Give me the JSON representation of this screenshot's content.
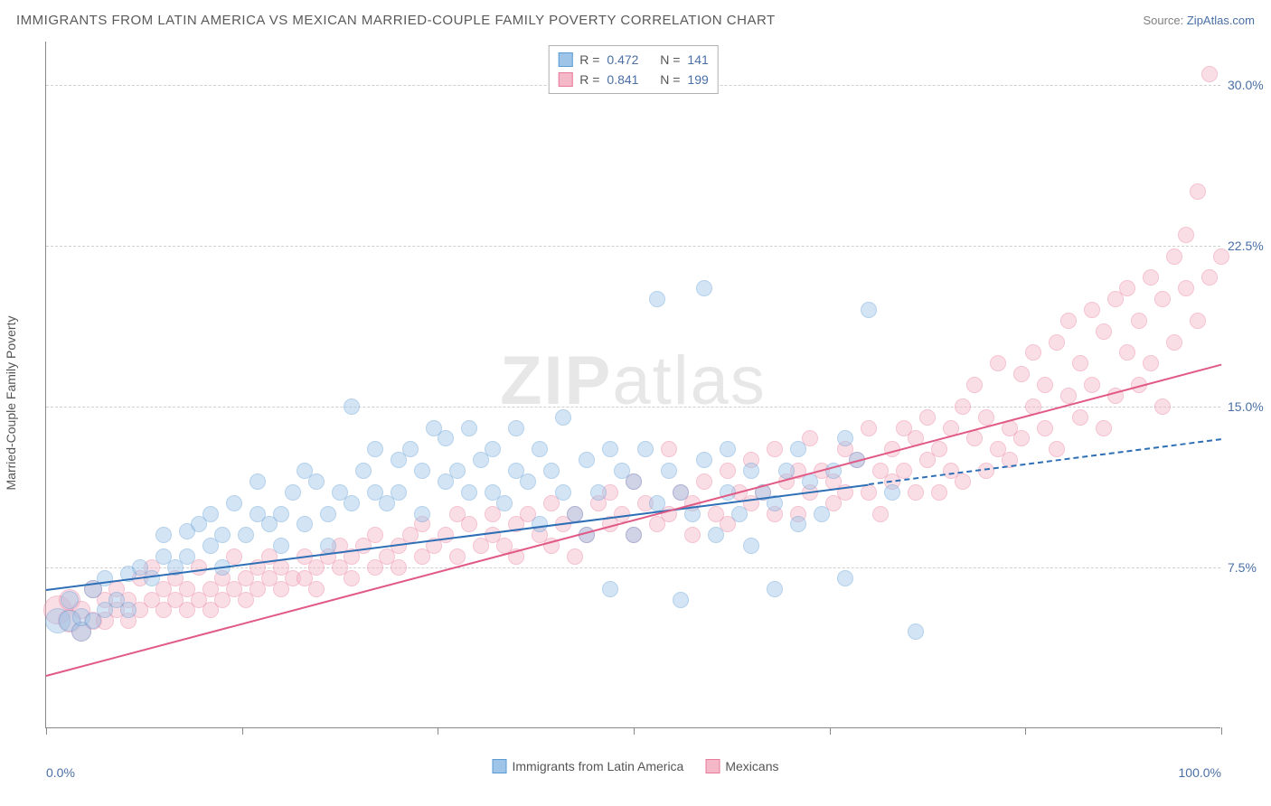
{
  "title": "IMMIGRANTS FROM LATIN AMERICA VS MEXICAN MARRIED-COUPLE FAMILY POVERTY CORRELATION CHART",
  "source_prefix": "Source: ",
  "source_name": "ZipAtlas.com",
  "watermark_a": "ZIP",
  "watermark_b": "atlas",
  "chart": {
    "type": "scatter",
    "xlim": [
      0,
      100
    ],
    "ylim": [
      0,
      32
    ],
    "x_ticks": [
      0,
      16.67,
      33.33,
      50,
      66.67,
      83.33,
      100
    ],
    "x_tick_labels": {
      "0": "0.0%",
      "100": "100.0%"
    },
    "y_gridlines": [
      7.5,
      15.0,
      22.5,
      30.0
    ],
    "y_tick_labels": {
      "7.5": "7.5%",
      "15.0": "15.0%",
      "22.5": "22.5%",
      "30.0": "30.0%"
    },
    "y_axis_label": "Married-Couple Family Poverty",
    "background_color": "#ffffff",
    "grid_color": "#d0d0d0",
    "axis_color": "#888888",
    "tick_label_color": "#4a6fa5",
    "marker_base_radius": 9,
    "marker_opacity": 0.45,
    "series": [
      {
        "key": "latin",
        "label": "Immigrants from Latin America",
        "fill": "#9ec5e8",
        "stroke": "#5a9bd4",
        "line_color": "#2e6fb5",
        "R": "0.472",
        "N": "141",
        "trend": {
          "x1": 0,
          "y1": 6.5,
          "x2": 100,
          "y2": 13.5,
          "solid_until_x": 70
        }
      },
      {
        "key": "mex",
        "label": "Mexicans",
        "fill": "#f5b8c8",
        "stroke": "#e87a9a",
        "line_color": "#e05a85",
        "R": "0.841",
        "N": "199",
        "trend": {
          "x1": 0,
          "y1": 2.5,
          "x2": 100,
          "y2": 17.0,
          "solid_until_x": 100
        }
      }
    ],
    "points_latin": [
      [
        1,
        5,
        14
      ],
      [
        2,
        5,
        12
      ],
      [
        2,
        6,
        10
      ],
      [
        3,
        4.5,
        11
      ],
      [
        3,
        5.2,
        10
      ],
      [
        4,
        5,
        9
      ],
      [
        4,
        6.5,
        10
      ],
      [
        5,
        5.5,
        9
      ],
      [
        5,
        7,
        9
      ],
      [
        6,
        6,
        9
      ],
      [
        7,
        5.5,
        9
      ],
      [
        7,
        7.2,
        9
      ],
      [
        8,
        7.5,
        9
      ],
      [
        9,
        7,
        9
      ],
      [
        10,
        8,
        9
      ],
      [
        10,
        9,
        9
      ],
      [
        11,
        7.5,
        9
      ],
      [
        12,
        8,
        9
      ],
      [
        12,
        9.2,
        9
      ],
      [
        13,
        9.5,
        9
      ],
      [
        14,
        8.5,
        9
      ],
      [
        14,
        10,
        9
      ],
      [
        15,
        9,
        9
      ],
      [
        15,
        7.5,
        9
      ],
      [
        16,
        10.5,
        9
      ],
      [
        17,
        9,
        9
      ],
      [
        18,
        10,
        9
      ],
      [
        18,
        11.5,
        9
      ],
      [
        19,
        9.5,
        9
      ],
      [
        20,
        10,
        9
      ],
      [
        20,
        8.5,
        9
      ],
      [
        21,
        11,
        9
      ],
      [
        22,
        9.5,
        9
      ],
      [
        22,
        12,
        9
      ],
      [
        23,
        11.5,
        9
      ],
      [
        24,
        10,
        9
      ],
      [
        24,
        8.5,
        9
      ],
      [
        25,
        11,
        9
      ],
      [
        26,
        15,
        9
      ],
      [
        26,
        10.5,
        9
      ],
      [
        27,
        12,
        9
      ],
      [
        28,
        11,
        9
      ],
      [
        28,
        13,
        9
      ],
      [
        29,
        10.5,
        9
      ],
      [
        30,
        12.5,
        9
      ],
      [
        30,
        11,
        9
      ],
      [
        31,
        13,
        9
      ],
      [
        32,
        12,
        9
      ],
      [
        32,
        10,
        9
      ],
      [
        33,
        14,
        9
      ],
      [
        34,
        11.5,
        9
      ],
      [
        34,
        13.5,
        9
      ],
      [
        35,
        12,
        9
      ],
      [
        36,
        11,
        9
      ],
      [
        36,
        14,
        9
      ],
      [
        37,
        12.5,
        9
      ],
      [
        38,
        11,
        9
      ],
      [
        38,
        13,
        9
      ],
      [
        39,
        10.5,
        9
      ],
      [
        40,
        12,
        9
      ],
      [
        40,
        14,
        9
      ],
      [
        41,
        11.5,
        9
      ],
      [
        42,
        13,
        9
      ],
      [
        42,
        9.5,
        9
      ],
      [
        43,
        12,
        9
      ],
      [
        44,
        11,
        9
      ],
      [
        44,
        14.5,
        9
      ],
      [
        45,
        10,
        9
      ],
      [
        46,
        12.5,
        9
      ],
      [
        46,
        9,
        9
      ],
      [
        47,
        11,
        9
      ],
      [
        48,
        13,
        9
      ],
      [
        48,
        6.5,
        9
      ],
      [
        49,
        12,
        9
      ],
      [
        50,
        11.5,
        9
      ],
      [
        50,
        9,
        9
      ],
      [
        51,
        13,
        9
      ],
      [
        52,
        10.5,
        9
      ],
      [
        52,
        20,
        9
      ],
      [
        53,
        12,
        9
      ],
      [
        54,
        6,
        9
      ],
      [
        54,
        11,
        9
      ],
      [
        55,
        10,
        9
      ],
      [
        56,
        20.5,
        9
      ],
      [
        56,
        12.5,
        9
      ],
      [
        57,
        9,
        9
      ],
      [
        58,
        11,
        9
      ],
      [
        58,
        13,
        9
      ],
      [
        59,
        10,
        9
      ],
      [
        60,
        12,
        9
      ],
      [
        60,
        8.5,
        9
      ],
      [
        61,
        11,
        9
      ],
      [
        62,
        10.5,
        9
      ],
      [
        62,
        6.5,
        9
      ],
      [
        63,
        12,
        9
      ],
      [
        64,
        13,
        9
      ],
      [
        64,
        9.5,
        9
      ],
      [
        65,
        11.5,
        9
      ],
      [
        66,
        10,
        9
      ],
      [
        67,
        12,
        9
      ],
      [
        68,
        13.5,
        9
      ],
      [
        68,
        7,
        9
      ],
      [
        69,
        12.5,
        9
      ],
      [
        70,
        19.5,
        9
      ],
      [
        72,
        11,
        9
      ],
      [
        74,
        4.5,
        9
      ]
    ],
    "points_mex": [
      [
        1,
        5.5,
        16
      ],
      [
        2,
        5,
        13
      ],
      [
        2,
        6,
        12
      ],
      [
        3,
        4.5,
        11
      ],
      [
        3,
        5.5,
        10
      ],
      [
        4,
        5,
        10
      ],
      [
        4,
        6.5,
        10
      ],
      [
        5,
        5,
        10
      ],
      [
        5,
        6,
        9
      ],
      [
        6,
        5.5,
        9
      ],
      [
        6,
        6.5,
        9
      ],
      [
        7,
        5,
        9
      ],
      [
        7,
        6,
        9
      ],
      [
        8,
        5.5,
        9
      ],
      [
        8,
        7,
        9
      ],
      [
        9,
        6,
        9
      ],
      [
        9,
        7.5,
        9
      ],
      [
        10,
        5.5,
        9
      ],
      [
        10,
        6.5,
        9
      ],
      [
        11,
        6,
        9
      ],
      [
        11,
        7,
        9
      ],
      [
        12,
        5.5,
        9
      ],
      [
        12,
        6.5,
        9
      ],
      [
        13,
        6,
        9
      ],
      [
        13,
        7.5,
        9
      ],
      [
        14,
        6.5,
        9
      ],
      [
        14,
        5.5,
        9
      ],
      [
        15,
        7,
        9
      ],
      [
        15,
        6,
        9
      ],
      [
        16,
        6.5,
        9
      ],
      [
        16,
        8,
        9
      ],
      [
        17,
        7,
        9
      ],
      [
        17,
        6,
        9
      ],
      [
        18,
        7.5,
        9
      ],
      [
        18,
        6.5,
        9
      ],
      [
        19,
        7,
        9
      ],
      [
        19,
        8,
        9
      ],
      [
        20,
        6.5,
        9
      ],
      [
        20,
        7.5,
        9
      ],
      [
        21,
        7,
        9
      ],
      [
        22,
        8,
        9
      ],
      [
        22,
        7,
        9
      ],
      [
        23,
        7.5,
        9
      ],
      [
        23,
        6.5,
        9
      ],
      [
        24,
        8,
        9
      ],
      [
        25,
        7.5,
        9
      ],
      [
        25,
        8.5,
        9
      ],
      [
        26,
        7,
        9
      ],
      [
        26,
        8,
        9
      ],
      [
        27,
        8.5,
        9
      ],
      [
        28,
        7.5,
        9
      ],
      [
        28,
        9,
        9
      ],
      [
        29,
        8,
        9
      ],
      [
        30,
        8.5,
        9
      ],
      [
        30,
        7.5,
        9
      ],
      [
        31,
        9,
        9
      ],
      [
        32,
        8,
        9
      ],
      [
        32,
        9.5,
        9
      ],
      [
        33,
        8.5,
        9
      ],
      [
        34,
        9,
        9
      ],
      [
        35,
        8,
        9
      ],
      [
        35,
        10,
        9
      ],
      [
        36,
        9.5,
        9
      ],
      [
        37,
        8.5,
        9
      ],
      [
        38,
        9,
        9
      ],
      [
        38,
        10,
        9
      ],
      [
        39,
        8.5,
        9
      ],
      [
        40,
        9.5,
        9
      ],
      [
        40,
        8,
        9
      ],
      [
        41,
        10,
        9
      ],
      [
        42,
        9,
        9
      ],
      [
        43,
        8.5,
        9
      ],
      [
        43,
        10.5,
        9
      ],
      [
        44,
        9.5,
        9
      ],
      [
        45,
        8,
        9
      ],
      [
        45,
        10,
        9
      ],
      [
        46,
        9,
        9
      ],
      [
        47,
        10.5,
        9
      ],
      [
        48,
        9.5,
        9
      ],
      [
        48,
        11,
        9
      ],
      [
        49,
        10,
        9
      ],
      [
        50,
        9,
        9
      ],
      [
        50,
        11.5,
        9
      ],
      [
        51,
        10.5,
        9
      ],
      [
        52,
        9.5,
        9
      ],
      [
        53,
        13,
        9
      ],
      [
        53,
        10,
        9
      ],
      [
        54,
        11,
        9
      ],
      [
        55,
        10.5,
        9
      ],
      [
        55,
        9,
        9
      ],
      [
        56,
        11.5,
        9
      ],
      [
        57,
        10,
        9
      ],
      [
        58,
        12,
        9
      ],
      [
        58,
        9.5,
        9
      ],
      [
        59,
        11,
        9
      ],
      [
        60,
        10.5,
        9
      ],
      [
        60,
        12.5,
        9
      ],
      [
        61,
        11,
        9
      ],
      [
        62,
        10,
        9
      ],
      [
        62,
        13,
        9
      ],
      [
        63,
        11.5,
        9
      ],
      [
        64,
        12,
        9
      ],
      [
        64,
        10,
        9
      ],
      [
        65,
        11,
        9
      ],
      [
        65,
        13.5,
        9
      ],
      [
        66,
        12,
        9
      ],
      [
        67,
        11.5,
        9
      ],
      [
        67,
        10.5,
        9
      ],
      [
        68,
        13,
        9
      ],
      [
        68,
        11,
        9
      ],
      [
        69,
        12.5,
        9
      ],
      [
        70,
        11,
        9
      ],
      [
        70,
        14,
        9
      ],
      [
        71,
        12,
        9
      ],
      [
        71,
        10,
        9
      ],
      [
        72,
        13,
        9
      ],
      [
        72,
        11.5,
        9
      ],
      [
        73,
        14,
        9
      ],
      [
        73,
        12,
        9
      ],
      [
        74,
        11,
        9
      ],
      [
        74,
        13.5,
        9
      ],
      [
        75,
        12.5,
        9
      ],
      [
        75,
        14.5,
        9
      ],
      [
        76,
        11,
        9
      ],
      [
        76,
        13,
        9
      ],
      [
        77,
        14,
        9
      ],
      [
        77,
        12,
        9
      ],
      [
        78,
        15,
        9
      ],
      [
        78,
        11.5,
        9
      ],
      [
        79,
        13.5,
        9
      ],
      [
        79,
        16,
        9
      ],
      [
        80,
        12,
        9
      ],
      [
        80,
        14.5,
        9
      ],
      [
        81,
        13,
        9
      ],
      [
        81,
        17,
        9
      ],
      [
        82,
        14,
        9
      ],
      [
        82,
        12.5,
        9
      ],
      [
        83,
        16.5,
        9
      ],
      [
        83,
        13.5,
        9
      ],
      [
        84,
        15,
        9
      ],
      [
        84,
        17.5,
        9
      ],
      [
        85,
        14,
        9
      ],
      [
        85,
        16,
        9
      ],
      [
        86,
        13,
        9
      ],
      [
        86,
        18,
        9
      ],
      [
        87,
        15.5,
        9
      ],
      [
        87,
        19,
        9
      ],
      [
        88,
        14.5,
        9
      ],
      [
        88,
        17,
        9
      ],
      [
        89,
        19.5,
        9
      ],
      [
        89,
        16,
        9
      ],
      [
        90,
        14,
        9
      ],
      [
        90,
        18.5,
        9
      ],
      [
        91,
        20,
        9
      ],
      [
        91,
        15.5,
        9
      ],
      [
        92,
        17.5,
        9
      ],
      [
        92,
        20.5,
        9
      ],
      [
        93,
        16,
        9
      ],
      [
        93,
        19,
        9
      ],
      [
        94,
        21,
        9
      ],
      [
        94,
        17,
        9
      ],
      [
        95,
        20,
        9
      ],
      [
        95,
        15,
        9
      ],
      [
        96,
        22,
        9
      ],
      [
        96,
        18,
        9
      ],
      [
        97,
        20.5,
        9
      ],
      [
        97,
        23,
        9
      ],
      [
        98,
        19,
        9
      ],
      [
        98,
        25,
        9
      ],
      [
        99,
        21,
        9
      ],
      [
        99,
        30.5,
        9
      ],
      [
        100,
        22,
        9
      ]
    ]
  }
}
